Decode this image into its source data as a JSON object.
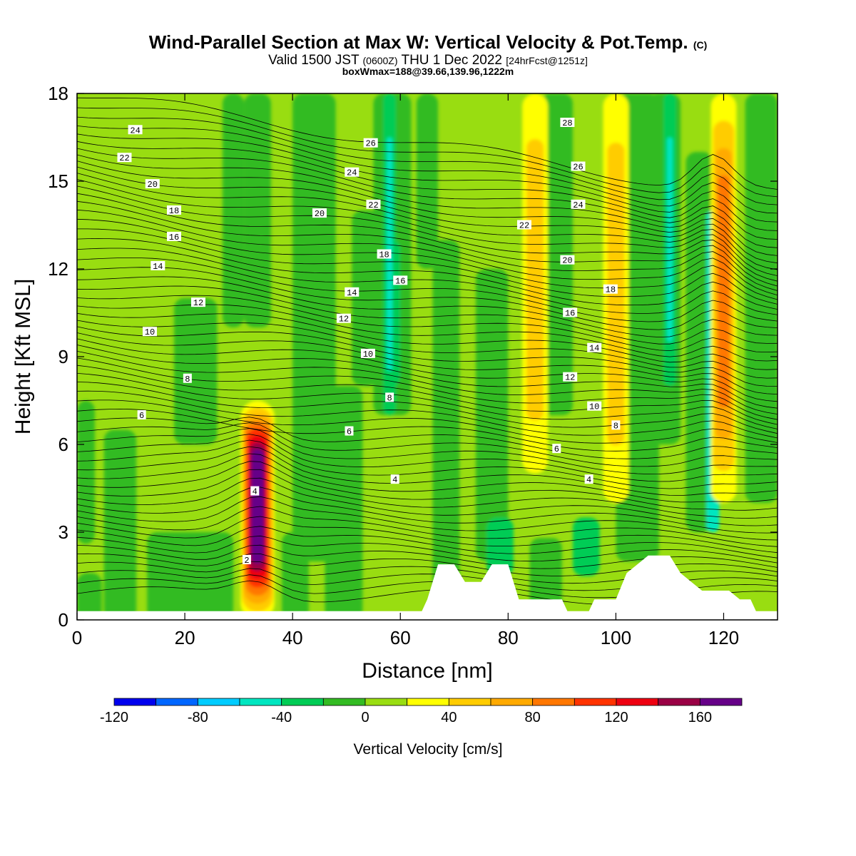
{
  "title": {
    "main": "Wind-Parallel Section at Max W: Vertical Velocity & Pot.Temp.",
    "copyright": "(C)",
    "valid_prefix": "Valid 1500 JST",
    "valid_zulu": "(0600Z)",
    "valid_date": "THU 1 Dec 2022",
    "forecast": "[24hrFcst@1251z]",
    "boxinfo": "boxWmax=188@39.66,139.96,1222m"
  },
  "chart_data": {
    "type": "heatmap",
    "xlabel": "Distance [nm]",
    "ylabel": "Height [Kft MSL]",
    "xlim": [
      0,
      130
    ],
    "ylim": [
      0,
      18
    ],
    "x_ticks": [
      "0",
      "20",
      "40",
      "60",
      "80",
      "100",
      "120"
    ],
    "y_ticks": [
      "0",
      "3",
      "6",
      "9",
      "12",
      "15",
      "18"
    ],
    "colorbar": {
      "label": "Vertical Velocity [cm/s]",
      "tick_labels": [
        "-120",
        "-80",
        "-40",
        "0",
        "40",
        "80",
        "120",
        "160"
      ],
      "levels": [
        -120,
        -100,
        -80,
        -60,
        -40,
        -20,
        0,
        20,
        40,
        60,
        80,
        100,
        120,
        140,
        160,
        180
      ],
      "colors": [
        "#0000ee",
        "#0066ff",
        "#00ccff",
        "#00e6c0",
        "#00cc55",
        "#33bb22",
        "#99dd11",
        "#ffff00",
        "#ffcc00",
        "#ffaa00",
        "#ff7700",
        "#ff3300",
        "#ee0011",
        "#990044",
        "#660088"
      ]
    },
    "updraft_columns": [
      {
        "x": 33.5,
        "y_range": [
          0,
          7.5
        ],
        "peak_w": 188
      },
      {
        "x": 85,
        "y_range": [
          5,
          18
        ],
        "peak_w": 40
      },
      {
        "x": 100,
        "y_range": [
          4,
          18
        ],
        "peak_w": 50
      },
      {
        "x": 120,
        "y_range": [
          4,
          18
        ],
        "peak_w": 80
      }
    ],
    "downdraft_columns": [
      {
        "x": 118,
        "y_range": [
          3,
          14
        ],
        "peak_w": -50
      },
      {
        "x": 58,
        "y_range": [
          7,
          18
        ],
        "peak_w": -30
      },
      {
        "x": 110,
        "y_range": [
          8,
          18
        ],
        "peak_w": -30
      }
    ],
    "terrain_kft": [
      [
        0,
        0.3
      ],
      [
        64,
        0.3
      ],
      [
        65,
        0.7
      ],
      [
        67,
        1.9
      ],
      [
        70,
        1.9
      ],
      [
        72,
        1.3
      ],
      [
        75,
        1.3
      ],
      [
        77,
        1.9
      ],
      [
        80,
        1.9
      ],
      [
        82,
        0.7
      ],
      [
        90,
        0.7
      ],
      [
        91,
        0.3
      ],
      [
        95,
        0.3
      ],
      [
        96,
        0.7
      ],
      [
        100,
        0.7
      ],
      [
        102,
        1.6
      ],
      [
        104,
        1.9
      ],
      [
        106,
        2.2
      ],
      [
        110,
        2.2
      ],
      [
        112,
        1.6
      ],
      [
        114,
        1.3
      ],
      [
        116,
        1.0
      ],
      [
        121,
        1.0
      ],
      [
        123,
        0.7
      ],
      [
        125,
        0.7
      ],
      [
        126,
        0.3
      ],
      [
        130,
        0.3
      ]
    ],
    "theta_contour_labels": [
      {
        "value": "24",
        "x": 10.8,
        "y": 16.75
      },
      {
        "value": "22",
        "x": 8.8,
        "y": 15.8
      },
      {
        "value": "20",
        "x": 14,
        "y": 14.9
      },
      {
        "value": "18",
        "x": 18,
        "y": 14.0
      },
      {
        "value": "16",
        "x": 18,
        "y": 13.1
      },
      {
        "value": "14",
        "x": 15,
        "y": 12.1
      },
      {
        "value": "12",
        "x": 22.5,
        "y": 10.85
      },
      {
        "value": "10",
        "x": 13.5,
        "y": 9.85
      },
      {
        "value": "8",
        "x": 20.5,
        "y": 8.25
      },
      {
        "value": "6",
        "x": 12,
        "y": 7.0
      },
      {
        "value": "4",
        "x": 33,
        "y": 4.4
      },
      {
        "value": "2",
        "x": 31.5,
        "y": 2.05
      },
      {
        "value": "26",
        "x": 54.5,
        "y": 16.3
      },
      {
        "value": "24",
        "x": 51,
        "y": 15.3
      },
      {
        "value": "22",
        "x": 55,
        "y": 14.2
      },
      {
        "value": "20",
        "x": 45,
        "y": 13.9
      },
      {
        "value": "18",
        "x": 57,
        "y": 12.5
      },
      {
        "value": "16",
        "x": 60,
        "y": 11.6
      },
      {
        "value": "14",
        "x": 51,
        "y": 11.2
      },
      {
        "value": "12",
        "x": 49.5,
        "y": 10.3
      },
      {
        "value": "10",
        "x": 54,
        "y": 9.1
      },
      {
        "value": "8",
        "x": 58,
        "y": 7.6
      },
      {
        "value": "6",
        "x": 50.5,
        "y": 6.45
      },
      {
        "value": "4",
        "x": 59,
        "y": 4.8
      },
      {
        "value": "28",
        "x": 91,
        "y": 17.0
      },
      {
        "value": "26",
        "x": 93,
        "y": 15.5
      },
      {
        "value": "24",
        "x": 93,
        "y": 14.2
      },
      {
        "value": "22",
        "x": 83,
        "y": 13.5
      },
      {
        "value": "20",
        "x": 91,
        "y": 12.3
      },
      {
        "value": "18",
        "x": 99,
        "y": 11.3
      },
      {
        "value": "16",
        "x": 91.5,
        "y": 10.5
      },
      {
        "value": "14",
        "x": 96,
        "y": 9.3
      },
      {
        "value": "12",
        "x": 91.5,
        "y": 8.3
      },
      {
        "value": "10",
        "x": 96,
        "y": 7.3
      },
      {
        "value": "8",
        "x": 100,
        "y": 6.65
      },
      {
        "value": "6",
        "x": 89,
        "y": 5.85
      },
      {
        "value": "4",
        "x": 95,
        "y": 4.8
      }
    ]
  }
}
